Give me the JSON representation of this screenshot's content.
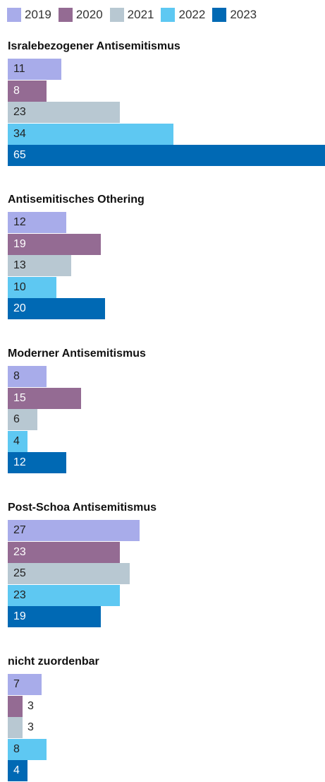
{
  "chart_data": {
    "type": "bar",
    "orientation": "horizontal",
    "xlim": [
      0,
      65
    ],
    "legend": {
      "placement": "top"
    },
    "series": [
      {
        "name": "2019",
        "color": "#a8acea"
      },
      {
        "name": "2020",
        "color": "#946b93"
      },
      {
        "name": "2021",
        "color": "#b8c8d2"
      },
      {
        "name": "2022",
        "color": "#5ec8f2"
      },
      {
        "name": "2023",
        "color": "#0069b4"
      }
    ],
    "groups": [
      {
        "title": "Isralebezogener Antisemitismus",
        "values": [
          11,
          8,
          23,
          34,
          65
        ]
      },
      {
        "title": "Antisemitisches Othering",
        "values": [
          12,
          19,
          13,
          10,
          20
        ]
      },
      {
        "title": "Moderner Antisemitismus",
        "values": [
          8,
          15,
          6,
          4,
          12
        ]
      },
      {
        "title": "Post-Schoa Antisemitismus",
        "values": [
          27,
          23,
          25,
          23,
          19
        ]
      },
      {
        "title": "nicht zuordenbar",
        "values": [
          7,
          3,
          3,
          8,
          4
        ]
      }
    ]
  }
}
